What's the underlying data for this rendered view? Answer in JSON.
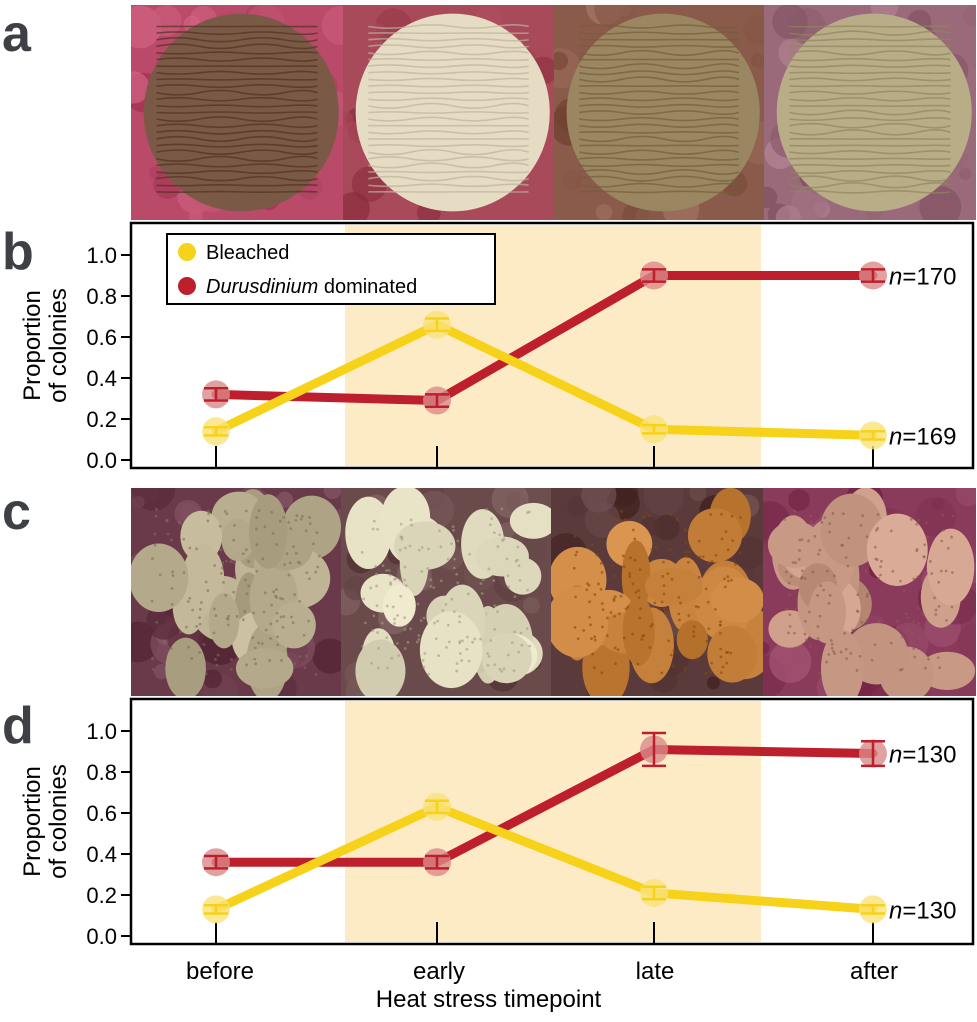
{
  "panels": {
    "a": "a",
    "b": "b",
    "c": "c",
    "d": "d"
  },
  "photos": {
    "row_a": [
      {
        "name": "brain-coral-before",
        "base": "#7a5a46",
        "ground": "#b94a6a"
      },
      {
        "name": "brain-coral-early",
        "base": "#e6dcc4",
        "ground": "#a84a5a"
      },
      {
        "name": "brain-coral-late",
        "base": "#9a8660",
        "ground": "#8a5a4a"
      },
      {
        "name": "brain-coral-after",
        "base": "#b8ad86",
        "ground": "#9a6a7a"
      }
    ],
    "row_c": [
      {
        "name": "branching-coral-before",
        "base": "#b8ad8e",
        "ground": "#6a3a4a"
      },
      {
        "name": "branching-coral-early",
        "base": "#ddd8bc",
        "ground": "#6a4a4a"
      },
      {
        "name": "branching-coral-late",
        "base": "#c8843e",
        "ground": "#5a3a3a"
      },
      {
        "name": "branching-coral-after",
        "base": "#c89a86",
        "ground": "#8a3a5a"
      }
    ]
  },
  "colors": {
    "bleached": "#f7d21a",
    "durusdinium": "#bd1f2d",
    "bleached_marker": "#f9e27a",
    "durusdinium_marker": "#d98a8a",
    "shade": "#fdebc6",
    "letter": "#3d4145"
  },
  "legend": {
    "bleached": "Bleached",
    "durusdinium_italic": "Durusdinium",
    "durusdinium_rest": " dominated"
  },
  "x_axis": {
    "categories": [
      "before",
      "early",
      "late",
      "after"
    ],
    "label": "Heat stress timepoint"
  },
  "chart_data": [
    {
      "type": "line",
      "panel": "b",
      "ylabel_line1": "Proportion",
      "ylabel_line2": "of colonies",
      "categories": [
        "before",
        "early",
        "late",
        "after"
      ],
      "ylim": [
        0,
        1.12
      ],
      "yticks": [
        "0.0",
        "0.2",
        "0.4",
        "0.6",
        "0.8",
        "1.0"
      ],
      "shaded_categories": [
        "early",
        "late"
      ],
      "series": [
        {
          "name": "Bleached",
          "values": [
            0.14,
            0.66,
            0.15,
            0.12
          ],
          "err": [
            0.02,
            0.03,
            0.02,
            0.02
          ],
          "n_label": "n=169"
        },
        {
          "name": "Durusdinium dominated",
          "values": [
            0.32,
            0.29,
            0.9,
            0.9
          ],
          "err": [
            0.03,
            0.03,
            0.03,
            0.03
          ],
          "n_label": "n=170"
        }
      ]
    },
    {
      "type": "line",
      "panel": "d",
      "ylabel_line1": "Proportion",
      "ylabel_line2": "of colonies",
      "categories": [
        "before",
        "early",
        "late",
        "after"
      ],
      "ylim": [
        0,
        1.12
      ],
      "yticks": [
        "0.0",
        "0.2",
        "0.4",
        "0.6",
        "0.8",
        "1.0"
      ],
      "shaded_categories": [
        "early",
        "late"
      ],
      "series": [
        {
          "name": "Bleached",
          "values": [
            0.13,
            0.63,
            0.21,
            0.13
          ],
          "err": [
            0.02,
            0.03,
            0.03,
            0.02
          ],
          "n_label": "n=130"
        },
        {
          "name": "Durusdinium dominated",
          "values": [
            0.36,
            0.36,
            0.91,
            0.89
          ],
          "err": [
            0.03,
            0.03,
            0.08,
            0.06
          ],
          "n_label": "n=130"
        }
      ]
    }
  ]
}
